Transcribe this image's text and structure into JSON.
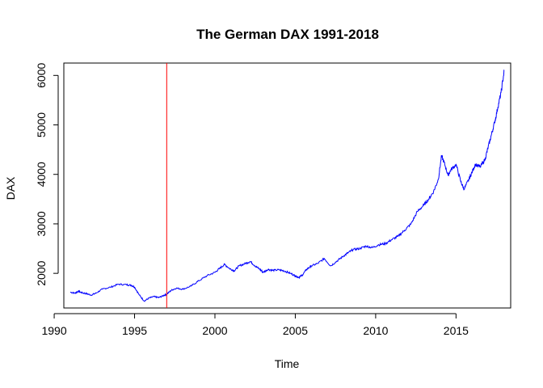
{
  "chart_data": {
    "type": "line",
    "title": "The German DAX 1991-2018",
    "xlabel": "Time",
    "ylabel": "DAX",
    "xlim": [
      1990.6,
      2018.4
    ],
    "ylim": [
      1300,
      6250
    ],
    "x_ticks": [
      1990,
      1995,
      2000,
      2005,
      2010,
      2015
    ],
    "x_tick_labels": [
      "1990",
      "1995",
      "2000",
      "2005",
      "2010",
      "2015"
    ],
    "y_ticks": [
      2000,
      3000,
      4000,
      5000,
      6000
    ],
    "y_tick_labels": [
      "2000",
      "3000",
      "4000",
      "5000",
      "6000"
    ],
    "grid": false,
    "series": [
      {
        "color": "#0000ff",
        "x": [
          1991.0,
          1991.3,
          1991.5,
          1991.7,
          1992.0,
          1992.3,
          1992.6,
          1993.0,
          1993.5,
          1994.0,
          1994.5,
          1994.8,
          1995.0,
          1995.3,
          1995.6,
          1995.9,
          1996.2,
          1996.5,
          1996.8,
          1997.0,
          1997.3,
          1997.6,
          1998.0,
          1998.5,
          1999.0,
          1999.5,
          2000.0,
          2000.3,
          2000.6,
          2000.9,
          2001.2,
          2001.5,
          2001.9,
          2002.2,
          2002.5,
          2002.8,
          2003.0,
          2003.3,
          2003.6,
          2004.0,
          2004.3,
          2004.7,
          2005.0,
          2005.2,
          2005.4,
          2005.7,
          2006.0,
          2006.4,
          2006.8,
          2007.2,
          2007.6,
          2008.0,
          2008.3,
          2008.6,
          2009.0,
          2009.4,
          2009.8,
          2010.2,
          2010.6,
          2011.0,
          2011.4,
          2011.8,
          2012.2,
          2012.6,
          2013.0,
          2013.3,
          2013.6,
          2013.9,
          2014.1,
          2014.3,
          2014.5,
          2014.7,
          2015.0,
          2015.3,
          2015.5,
          2015.8,
          2016.0,
          2016.2,
          2016.5,
          2016.8,
          2017.0,
          2017.2,
          2017.4,
          2017.6,
          2017.8,
          2018.0
        ],
        "values": [
          1620,
          1600,
          1640,
          1610,
          1590,
          1560,
          1600,
          1680,
          1720,
          1780,
          1770,
          1760,
          1720,
          1560,
          1440,
          1500,
          1530,
          1510,
          1550,
          1580,
          1660,
          1700,
          1680,
          1740,
          1850,
          1950,
          2020,
          2100,
          2180,
          2100,
          2050,
          2150,
          2200,
          2240,
          2150,
          2080,
          2020,
          2080,
          2060,
          2070,
          2050,
          2000,
          1950,
          1920,
          1950,
          2080,
          2150,
          2200,
          2300,
          2150,
          2250,
          2350,
          2420,
          2480,
          2500,
          2550,
          2520,
          2580,
          2600,
          2680,
          2750,
          2870,
          3000,
          3250,
          3380,
          3500,
          3650,
          3900,
          4380,
          4200,
          3980,
          4100,
          4200,
          3850,
          3700,
          3900,
          4050,
          4200,
          4150,
          4300,
          4550,
          4800,
          5050,
          5350,
          5650,
          6100
        ]
      }
    ],
    "reference_lines": [
      {
        "orientation": "vertical",
        "x": 1997.0,
        "color": "#ff0000"
      }
    ]
  }
}
